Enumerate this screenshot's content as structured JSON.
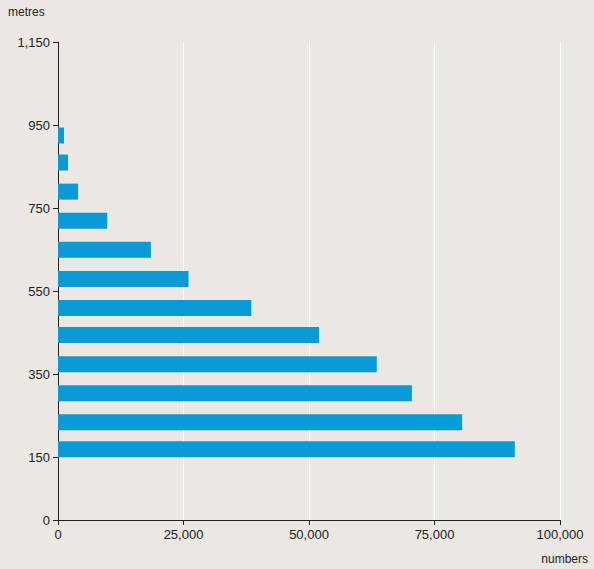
{
  "chart_data": {
    "type": "bar",
    "orientation": "horizontal",
    "xlabel": "numbers",
    "ylabel": "metres",
    "y": [
      170,
      235,
      305,
      375,
      445,
      510,
      580,
      650,
      720,
      790,
      860,
      925
    ],
    "values": [
      91000,
      80500,
      70500,
      63500,
      52000,
      38500,
      26000,
      18500,
      9800,
      4000,
      2000,
      1200
    ],
    "color": "#0a9bd6",
    "xlim": [
      0,
      100000
    ],
    "xticks": [
      0,
      {
        "value": 25000,
        "label": "25,000"
      },
      {
        "value": 50000,
        "label": "50,000"
      },
      {
        "value": 75000,
        "label": "75,000"
      },
      {
        "value": 100000,
        "label": "100,000"
      }
    ],
    "ylim": [
      0,
      1150
    ],
    "yticks": [
      0,
      150,
      350,
      550,
      750,
      950,
      {
        "value": 1150,
        "label": "1,150"
      }
    ],
    "grid": true
  }
}
